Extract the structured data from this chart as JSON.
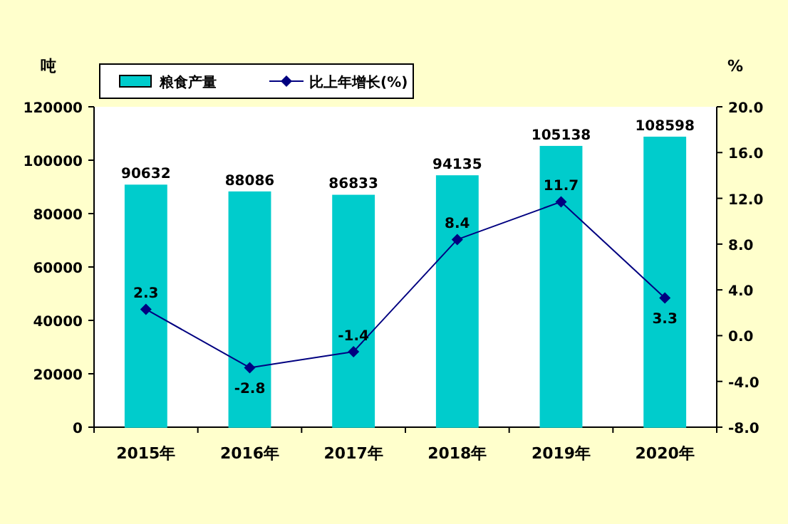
{
  "chart_data": {
    "type": "bar",
    "categories": [
      "2015年",
      "2016年",
      "2017年",
      "2018年",
      "2019年",
      "2020年"
    ],
    "ylabel": "吨",
    "y2label": "%",
    "series": [
      {
        "name": "粮食产量",
        "color": "#00cccc",
        "values": [
          90632,
          88086,
          86833,
          94135,
          105138,
          108598
        ]
      },
      {
        "name": "比上年增长(%)",
        "type": "line",
        "axis": "y2",
        "color": "#000080",
        "values": [
          2.3,
          -2.8,
          -1.4,
          8.4,
          11.7,
          3.3
        ]
      }
    ],
    "ylim": [
      0,
      120000
    ],
    "yticks": [
      0,
      20000,
      40000,
      60000,
      80000,
      100000,
      120000
    ],
    "y2lim": [
      -8,
      20
    ],
    "y2ticks": [
      {
        "value": -8,
        "label": "-8.0"
      },
      {
        "value": -4,
        "label": "-4.0"
      },
      {
        "value": 0,
        "label": "0.0"
      },
      {
        "value": 4,
        "label": "4.0"
      },
      {
        "value": 8,
        "label": "8.0"
      },
      {
        "value": 12,
        "label": "12.0"
      },
      {
        "value": 16,
        "label": "16.0"
      },
      {
        "value": 20,
        "label": "20.0"
      }
    ],
    "data_labels": true,
    "legend": "top",
    "marker": "diamond",
    "grid": false
  }
}
